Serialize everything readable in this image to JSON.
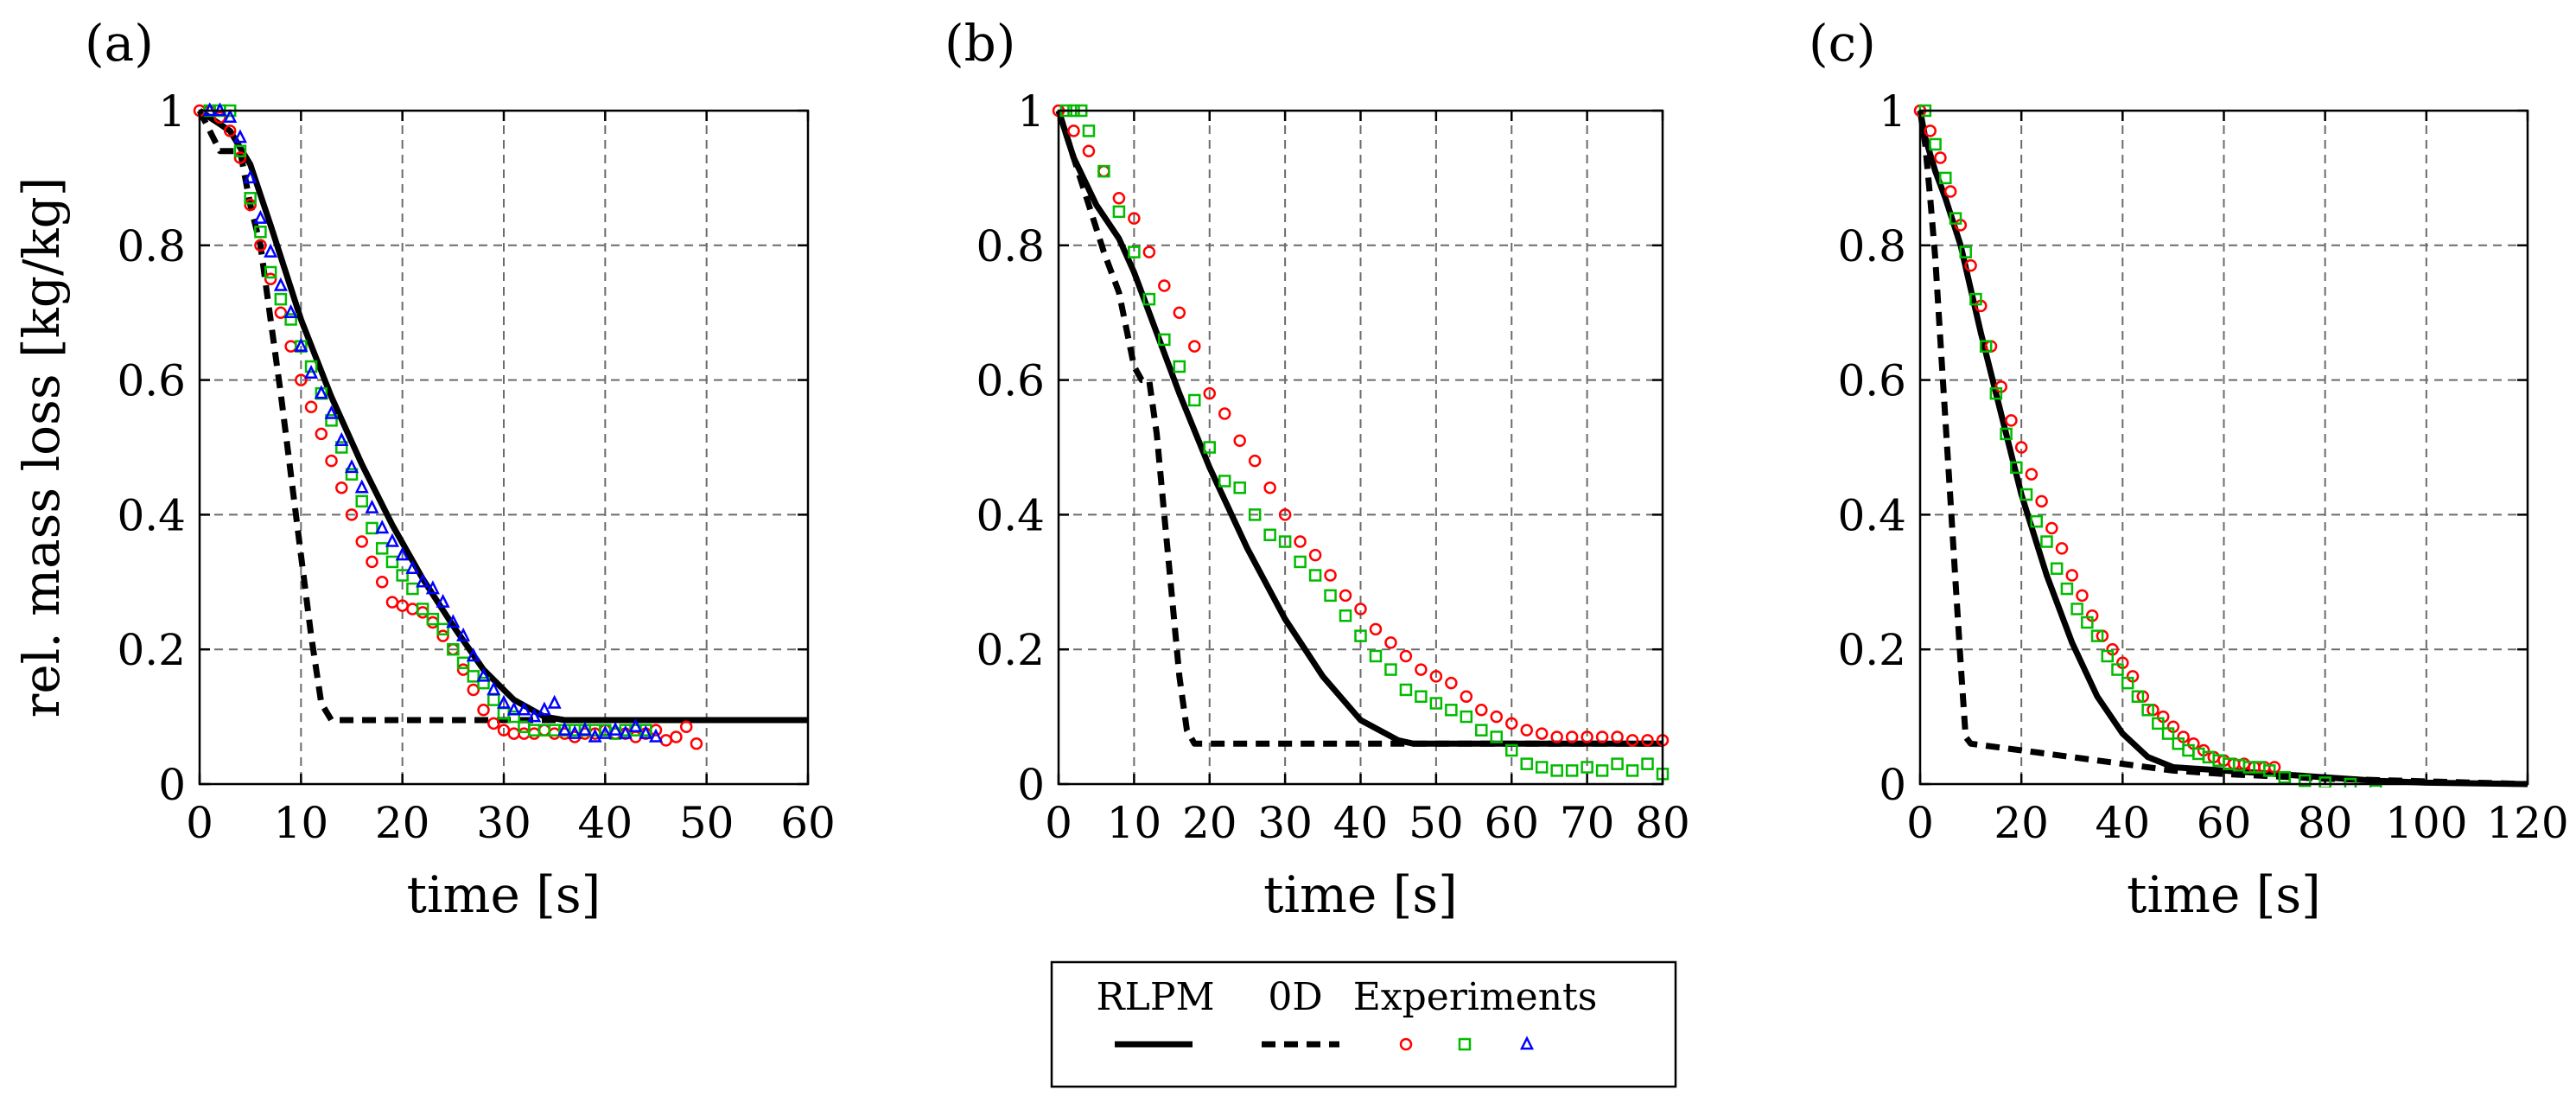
{
  "figure": {
    "legend": {
      "entries": [
        "RLPM",
        "0D",
        "Experiments"
      ]
    }
  },
  "colors": {
    "rlpm": "#000000",
    "zeroD": "#000000",
    "exp1": "#ff0000",
    "exp2": "#00bb00",
    "exp3": "#0000ff"
  },
  "chart_data": [
    {
      "type": "line",
      "panel": "(a)",
      "xlabel": "time [s]",
      "ylabel": "rel. mass loss [kg/kg]",
      "xlim": [
        0,
        60
      ],
      "ylim": [
        0,
        1
      ],
      "xticks": [
        0,
        10,
        20,
        30,
        40,
        50,
        60
      ],
      "yticks": [
        0,
        0.2,
        0.4,
        0.6,
        0.8,
        1
      ],
      "ytick_labels": [
        "0",
        "0.2",
        "0.4",
        "0.6",
        "0.8",
        "1"
      ],
      "series": [
        {
          "name": "RLPM",
          "style": "solid",
          "x": [
            0,
            1,
            3,
            5,
            7,
            10,
            13,
            16,
            19,
            22,
            25,
            28,
            31,
            34,
            36,
            40,
            50,
            60
          ],
          "y": [
            1.0,
            0.99,
            0.97,
            0.92,
            0.83,
            0.69,
            0.575,
            0.475,
            0.385,
            0.305,
            0.235,
            0.17,
            0.125,
            0.1,
            0.095,
            0.095,
            0.095,
            0.095
          ]
        },
        {
          "name": "0D",
          "style": "dashed",
          "x": [
            0,
            2,
            4,
            5,
            6,
            7,
            8,
            9,
            10,
            11,
            12,
            13,
            60
          ],
          "y": [
            1.0,
            0.94,
            0.94,
            0.86,
            0.8,
            0.69,
            0.58,
            0.46,
            0.34,
            0.22,
            0.12,
            0.095,
            0.095
          ]
        },
        {
          "name": "Experiments 1",
          "marker": "circle",
          "x": [
            0,
            1,
            2,
            3,
            4,
            5,
            6,
            7,
            8,
            9,
            10,
            11,
            12,
            13,
            14,
            15,
            16,
            17,
            18,
            19,
            20,
            21,
            22,
            23,
            24,
            25,
            26,
            27,
            28,
            29,
            30,
            31,
            32,
            33,
            34,
            35,
            36,
            37,
            38,
            39,
            40,
            41,
            42,
            43,
            44,
            45,
            46,
            47,
            48,
            49
          ],
          "y": [
            1.0,
            1.0,
            0.99,
            0.97,
            0.93,
            0.86,
            0.8,
            0.75,
            0.7,
            0.65,
            0.6,
            0.56,
            0.52,
            0.48,
            0.44,
            0.4,
            0.36,
            0.33,
            0.3,
            0.27,
            0.265,
            0.26,
            0.255,
            0.24,
            0.22,
            0.2,
            0.17,
            0.14,
            0.11,
            0.09,
            0.08,
            0.075,
            0.075,
            0.075,
            0.08,
            0.075,
            0.075,
            0.07,
            0.075,
            0.075,
            0.08,
            0.075,
            0.075,
            0.07,
            0.075,
            0.08,
            0.065,
            0.07,
            0.085,
            0.06
          ]
        },
        {
          "name": "Experiments 2",
          "marker": "square",
          "x": [
            1,
            2,
            3,
            4,
            5,
            6,
            7,
            8,
            9,
            10,
            11,
            12,
            13,
            14,
            15,
            16,
            17,
            18,
            19,
            20,
            21,
            22,
            23,
            24,
            25,
            26,
            27,
            28,
            29,
            30,
            31,
            32,
            33,
            34,
            35,
            36,
            37,
            38,
            39,
            40,
            41,
            42,
            43,
            44
          ],
          "y": [
            1.0,
            1.0,
            1.0,
            0.94,
            0.87,
            0.82,
            0.76,
            0.72,
            0.69,
            0.65,
            0.62,
            0.58,
            0.54,
            0.5,
            0.46,
            0.42,
            0.38,
            0.35,
            0.33,
            0.31,
            0.29,
            0.26,
            0.245,
            0.23,
            0.2,
            0.18,
            0.16,
            0.15,
            0.125,
            0.105,
            0.1,
            0.085,
            0.08,
            0.08,
            0.08,
            0.08,
            0.08,
            0.08,
            0.08,
            0.08,
            0.075,
            0.08,
            0.08,
            0.08
          ]
        },
        {
          "name": "Experiments 3",
          "marker": "triangle",
          "x": [
            1,
            2,
            3,
            4,
            5,
            6,
            7,
            8,
            9,
            10,
            11,
            12,
            13,
            14,
            15,
            16,
            17,
            18,
            19,
            20,
            21,
            22,
            23,
            24,
            25,
            26,
            27,
            28,
            29,
            30,
            31,
            32,
            33,
            34,
            35,
            36,
            37,
            38,
            39,
            40,
            41,
            42,
            43,
            44,
            45
          ],
          "y": [
            1.0,
            1.0,
            0.99,
            0.96,
            0.9,
            0.84,
            0.79,
            0.74,
            0.7,
            0.65,
            0.61,
            0.58,
            0.55,
            0.51,
            0.47,
            0.44,
            0.41,
            0.38,
            0.36,
            0.34,
            0.32,
            0.3,
            0.29,
            0.27,
            0.24,
            0.22,
            0.19,
            0.16,
            0.14,
            0.12,
            0.11,
            0.11,
            0.1,
            0.11,
            0.12,
            0.08,
            0.075,
            0.08,
            0.07,
            0.075,
            0.08,
            0.075,
            0.085,
            0.075,
            0.07
          ]
        }
      ]
    },
    {
      "type": "line",
      "panel": "(b)",
      "xlabel": "time [s]",
      "ylabel": "",
      "xlim": [
        0,
        80
      ],
      "ylim": [
        0,
        1
      ],
      "xticks": [
        0,
        10,
        20,
        30,
        40,
        50,
        60,
        70,
        80
      ],
      "yticks": [
        0,
        0.2,
        0.4,
        0.6,
        0.8,
        1
      ],
      "ytick_labels": [
        "0",
        "0.2",
        "0.4",
        "0.6",
        "0.8",
        "1"
      ],
      "series": [
        {
          "name": "RLPM",
          "style": "solid",
          "x": [
            0,
            2,
            5,
            8,
            10,
            13,
            16,
            20,
            25,
            30,
            35,
            40,
            45,
            47,
            60,
            80
          ],
          "y": [
            1.0,
            0.93,
            0.86,
            0.81,
            0.76,
            0.67,
            0.58,
            0.47,
            0.35,
            0.245,
            0.16,
            0.095,
            0.065,
            0.06,
            0.06,
            0.06
          ]
        },
        {
          "name": "0D",
          "style": "dashed",
          "x": [
            0,
            2,
            4,
            6,
            8,
            10,
            11,
            12,
            13,
            14,
            15,
            16,
            17,
            18,
            80
          ],
          "y": [
            1.0,
            0.93,
            0.86,
            0.79,
            0.73,
            0.62,
            0.6,
            0.6,
            0.52,
            0.4,
            0.28,
            0.16,
            0.08,
            0.06,
            0.06
          ]
        },
        {
          "name": "Experiments 1",
          "marker": "circle",
          "x": [
            0,
            2,
            4,
            6,
            8,
            10,
            12,
            14,
            16,
            18,
            20,
            22,
            24,
            26,
            28,
            30,
            32,
            34,
            36,
            38,
            40,
            42,
            44,
            46,
            48,
            50,
            52,
            54,
            56,
            58,
            60,
            62,
            64,
            66,
            68,
            70,
            72,
            74,
            76,
            78,
            80
          ],
          "y": [
            1.0,
            0.97,
            0.94,
            0.91,
            0.87,
            0.84,
            0.79,
            0.74,
            0.7,
            0.65,
            0.58,
            0.55,
            0.51,
            0.48,
            0.44,
            0.4,
            0.36,
            0.34,
            0.31,
            0.28,
            0.26,
            0.23,
            0.21,
            0.19,
            0.17,
            0.16,
            0.15,
            0.13,
            0.11,
            0.1,
            0.09,
            0.08,
            0.075,
            0.07,
            0.07,
            0.07,
            0.07,
            0.07,
            0.065,
            0.065,
            0.065
          ]
        },
        {
          "name": "Experiments 2",
          "marker": "square",
          "x": [
            1,
            2,
            3,
            4,
            6,
            8,
            10,
            12,
            14,
            16,
            18,
            20,
            22,
            24,
            26,
            28,
            30,
            32,
            34,
            36,
            38,
            40,
            42,
            44,
            46,
            48,
            50,
            52,
            54,
            56,
            58,
            60,
            62,
            64,
            66,
            68,
            70,
            72,
            74,
            76,
            78,
            80
          ],
          "y": [
            1.0,
            1.0,
            1.0,
            0.97,
            0.91,
            0.85,
            0.79,
            0.72,
            0.66,
            0.62,
            0.57,
            0.5,
            0.45,
            0.44,
            0.4,
            0.37,
            0.36,
            0.33,
            0.31,
            0.28,
            0.25,
            0.22,
            0.19,
            0.17,
            0.14,
            0.13,
            0.12,
            0.11,
            0.1,
            0.08,
            0.07,
            0.05,
            0.03,
            0.025,
            0.02,
            0.02,
            0.025,
            0.02,
            0.03,
            0.02,
            0.03,
            0.015
          ]
        }
      ]
    },
    {
      "type": "line",
      "panel": "(c)",
      "xlabel": "time [s]",
      "ylabel": "",
      "xlim": [
        0,
        120
      ],
      "ylim": [
        0,
        1
      ],
      "xticks": [
        0,
        20,
        40,
        60,
        80,
        100,
        120
      ],
      "yticks": [
        0,
        0.2,
        0.4,
        0.6,
        0.8,
        1
      ],
      "ytick_labels": [
        "0",
        "0.2",
        "0.4",
        "0.6",
        "0.8",
        "1"
      ],
      "series": [
        {
          "name": "RLPM",
          "style": "solid",
          "x": [
            0,
            1,
            3,
            5,
            8,
            12,
            16,
            20,
            25,
            30,
            35,
            40,
            45,
            50,
            60,
            70,
            80,
            90,
            100,
            120
          ],
          "y": [
            1.0,
            0.96,
            0.91,
            0.87,
            0.8,
            0.67,
            0.55,
            0.43,
            0.31,
            0.21,
            0.13,
            0.075,
            0.04,
            0.025,
            0.02,
            0.015,
            0.01,
            0.005,
            0.002,
            0.0
          ]
        },
        {
          "name": "0D",
          "style": "dashed",
          "x": [
            0,
            1,
            2,
            3,
            4,
            5,
            6,
            7,
            8,
            9,
            10,
            20,
            30,
            40,
            50,
            60,
            80,
            100,
            120
          ],
          "y": [
            1.0,
            0.95,
            0.87,
            0.78,
            0.66,
            0.54,
            0.42,
            0.3,
            0.18,
            0.07,
            0.06,
            0.05,
            0.04,
            0.03,
            0.02,
            0.015,
            0.008,
            0.004,
            0.0
          ]
        },
        {
          "name": "Experiments 1",
          "marker": "circle",
          "x": [
            0,
            2,
            4,
            6,
            8,
            10,
            12,
            14,
            16,
            18,
            20,
            22,
            24,
            26,
            28,
            30,
            32,
            34,
            36,
            38,
            40,
            42,
            44,
            46,
            48,
            50,
            52,
            54,
            56,
            58,
            60,
            62,
            64,
            66,
            68,
            70
          ],
          "y": [
            1.0,
            0.97,
            0.93,
            0.88,
            0.83,
            0.77,
            0.71,
            0.65,
            0.59,
            0.54,
            0.5,
            0.46,
            0.42,
            0.38,
            0.35,
            0.31,
            0.28,
            0.25,
            0.22,
            0.2,
            0.18,
            0.16,
            0.13,
            0.11,
            0.1,
            0.085,
            0.07,
            0.06,
            0.05,
            0.04,
            0.035,
            0.03,
            0.03,
            0.025,
            0.025,
            0.025
          ]
        },
        {
          "name": "Experiments 2",
          "marker": "square",
          "x": [
            1,
            3,
            5,
            7,
            9,
            11,
            13,
            15,
            17,
            19,
            21,
            23,
            25,
            27,
            29,
            31,
            33,
            35,
            37,
            39,
            41,
            43,
            45,
            47,
            49,
            51,
            53,
            55,
            57,
            59,
            61,
            63,
            65,
            67,
            69,
            72,
            76,
            80,
            85,
            90
          ],
          "y": [
            1.0,
            0.95,
            0.9,
            0.84,
            0.79,
            0.72,
            0.65,
            0.58,
            0.52,
            0.47,
            0.43,
            0.39,
            0.36,
            0.32,
            0.29,
            0.26,
            0.24,
            0.22,
            0.19,
            0.17,
            0.15,
            0.13,
            0.11,
            0.09,
            0.075,
            0.06,
            0.05,
            0.045,
            0.04,
            0.035,
            0.03,
            0.028,
            0.025,
            0.025,
            0.02,
            0.01,
            0.005,
            0.002,
            0.0,
            -0.01
          ]
        }
      ]
    }
  ]
}
